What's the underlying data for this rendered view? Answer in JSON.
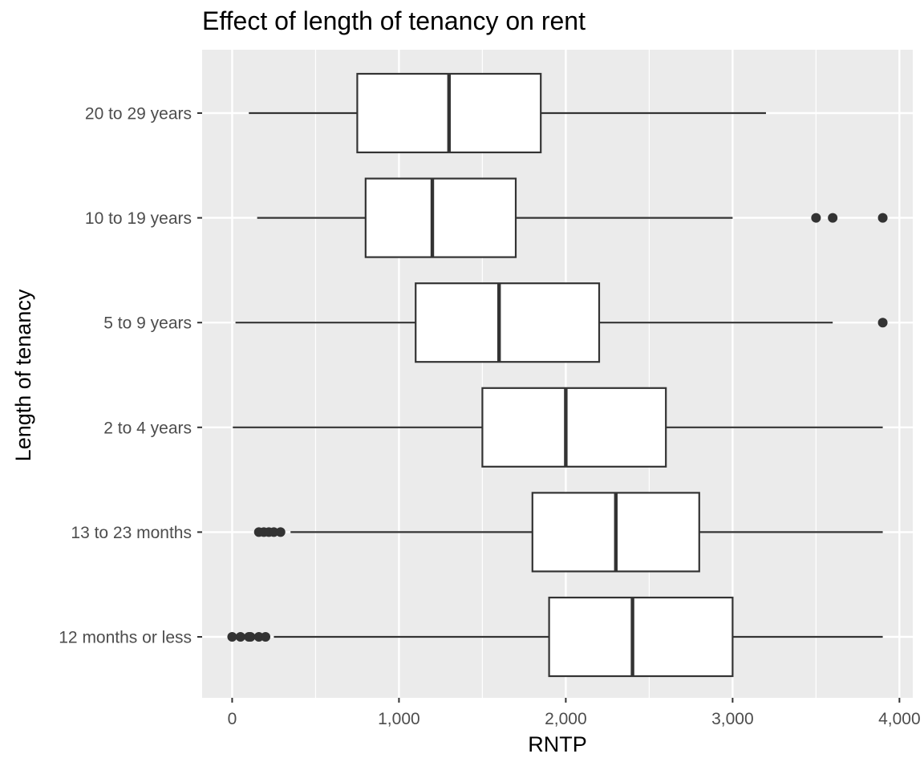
{
  "chart_data": {
    "type": "boxplot",
    "orientation": "horizontal",
    "title": "Effect of length of tenancy on rent",
    "xlabel": "RNTP",
    "ylabel": "Length of tenancy",
    "xlim": [
      -180,
      4080
    ],
    "x_ticks": [
      0,
      1000,
      2000,
      3000,
      4000
    ],
    "x_tick_labels": [
      "0",
      "1,000",
      "2,000",
      "3,000",
      "4,000"
    ],
    "x_minor_ticks": [
      500,
      1500,
      2500,
      3500
    ],
    "grid": true,
    "panel_background": "#ebebeb",
    "box_fill": "#ffffff",
    "line_color": "#333333",
    "categories": [
      "20 to 29 years",
      "10 to 19 years",
      "5 to 9 years",
      "2 to 4 years",
      "13 to 23 months",
      "12 months or less"
    ],
    "boxes": [
      {
        "category": "20 to 29 years",
        "whisker_low": 100,
        "q1": 750,
        "median": 1300,
        "q3": 1850,
        "whisker_high": 3200,
        "outliers": []
      },
      {
        "category": "10 to 19 years",
        "whisker_low": 150,
        "q1": 800,
        "median": 1200,
        "q3": 1700,
        "whisker_high": 3000,
        "outliers": [
          3500,
          3600,
          3900
        ]
      },
      {
        "category": "5 to 9 years",
        "whisker_low": 20,
        "q1": 1100,
        "median": 1600,
        "q3": 2200,
        "whisker_high": 3600,
        "outliers": [
          3900
        ]
      },
      {
        "category": "2 to 4 years",
        "whisker_low": 4,
        "q1": 1500,
        "median": 2000,
        "q3": 2600,
        "whisker_high": 3900,
        "outliers": []
      },
      {
        "category": "13 to 23 months",
        "whisker_low": 350,
        "q1": 1800,
        "median": 2300,
        "q3": 2800,
        "whisker_high": 3900,
        "outliers": [
          160,
          190,
          220,
          250,
          290
        ]
      },
      {
        "category": "12 months or less",
        "whisker_low": 250,
        "q1": 1900,
        "median": 2400,
        "q3": 3000,
        "whisker_high": 3900,
        "outliers": [
          0,
          50,
          100,
          110,
          160,
          200
        ]
      }
    ]
  }
}
